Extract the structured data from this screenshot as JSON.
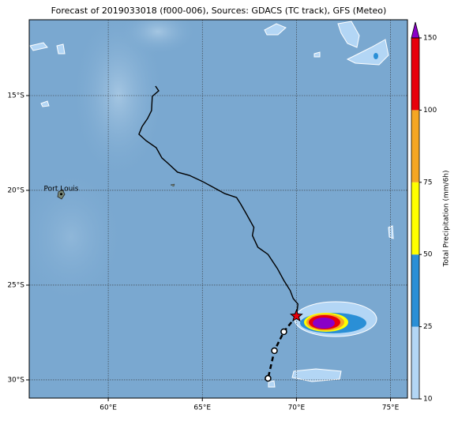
{
  "map": {
    "title": "Forecast of 2019033018 (f000-006), Sources: GDACS (TC track), GFS (Meteo)",
    "xlim": [
      55.8,
      75.9
    ],
    "ylim": [
      -30.96,
      -11
    ],
    "xticks": [
      {
        "value": 60,
        "label": "60°E"
      },
      {
        "value": 65,
        "label": "65°E"
      },
      {
        "value": 70,
        "label": "70°E"
      },
      {
        "value": 75,
        "label": "75°E"
      }
    ],
    "yticks": [
      {
        "value": -15,
        "label": "15°S"
      },
      {
        "value": -20,
        "label": "20°S"
      },
      {
        "value": -25,
        "label": "25°S"
      },
      {
        "value": -30,
        "label": "30°S"
      }
    ],
    "grid": true,
    "track": {
      "lon": [
        62.51,
        62.68,
        62.34,
        62.3,
        62.09,
        61.8,
        61.63,
        62.01,
        62.55,
        62.85,
        63.18,
        63.68,
        64.31,
        65.02,
        65.56,
        66.19,
        66.82,
        67.03,
        67.32,
        67.74,
        67.66,
        67.95,
        68.49,
        68.99,
        69.33,
        69.67,
        69.83,
        70.08,
        70.0
      ],
      "lat": [
        -14.5,
        -14.75,
        -15.04,
        -15.79,
        -16.21,
        -16.63,
        -17.04,
        -17.38,
        -17.75,
        -18.29,
        -18.58,
        -19.04,
        -19.21,
        -19.54,
        -19.83,
        -20.17,
        -20.38,
        -20.71,
        -21.21,
        -21.96,
        -22.38,
        -23.0,
        -23.38,
        -24.13,
        -24.75,
        -25.29,
        -25.71,
        -26.0,
        -26.63
      ]
    },
    "forecast": {
      "lon": [
        70.0,
        69.33,
        68.83,
        68.49
      ],
      "lat": [
        -26.63,
        -27.46,
        -28.46,
        -29.92
      ]
    },
    "place": {
      "name": "Port Louis",
      "lon": 57.5,
      "lat": -20.2
    },
    "colorbar": {
      "label": "Total Precipitation (mm/6h)",
      "levels": [
        10,
        25,
        50,
        75,
        100,
        150
      ],
      "colors": [
        "#b3d6f5",
        "#2a8fd6",
        "#ffff00",
        "#f5a623",
        "#e8000b"
      ],
      "extend_color": "#8a00c8"
    }
  }
}
